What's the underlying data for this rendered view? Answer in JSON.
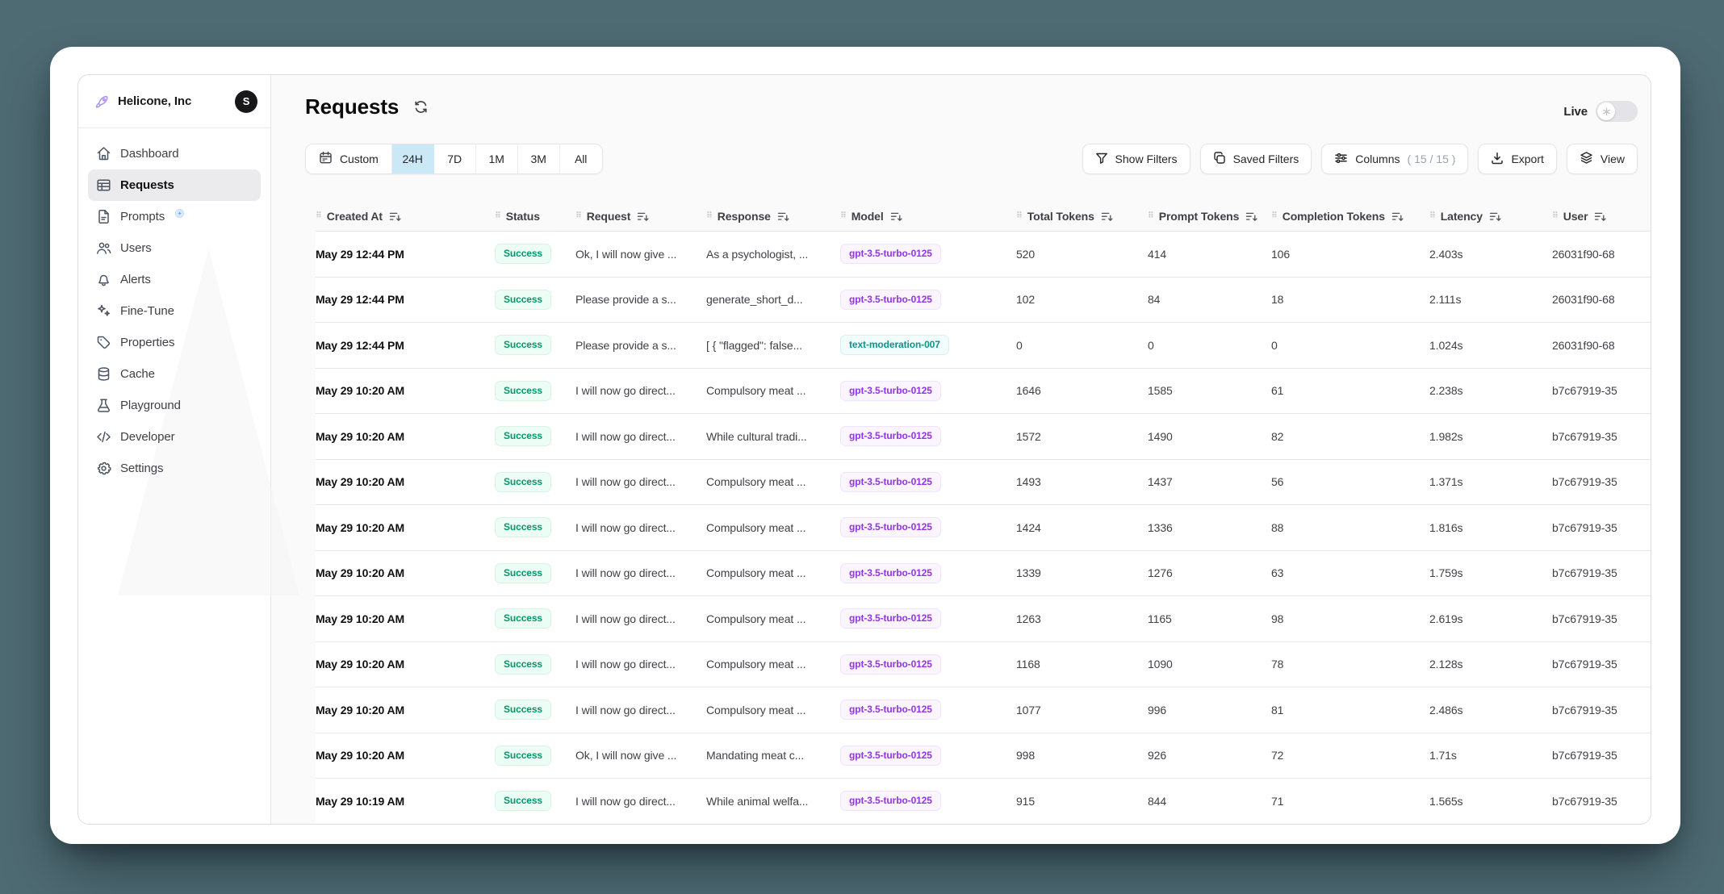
{
  "colors": {
    "background": "#4e6a73",
    "selected_range_bg": "#cbe8f7",
    "success_text": "#059669",
    "success_bg": "#ecfdf5",
    "model_purple_text": "#9333ea",
    "model_teal_text": "#0d9488",
    "sidebar_active_bg": "#ebebee"
  },
  "org": {
    "name": "Helicone, Inc",
    "avatar_initial": "S",
    "logo_icon": "rocket-icon"
  },
  "sidebar": {
    "items": [
      {
        "id": "dashboard",
        "label": "Dashboard",
        "icon": "dashboard-icon",
        "active": false,
        "badge": false
      },
      {
        "id": "requests",
        "label": "Requests",
        "icon": "table-icon",
        "active": true,
        "badge": false
      },
      {
        "id": "prompts",
        "label": "Prompts",
        "icon": "document-icon",
        "active": false,
        "badge": true
      },
      {
        "id": "users",
        "label": "Users",
        "icon": "users-icon",
        "active": false,
        "badge": false
      },
      {
        "id": "alerts",
        "label": "Alerts",
        "icon": "bell-icon",
        "active": false,
        "badge": false
      },
      {
        "id": "fine-tune",
        "label": "Fine-Tune",
        "icon": "sparkles-icon",
        "active": false,
        "badge": false
      },
      {
        "id": "properties",
        "label": "Properties",
        "icon": "tag-icon",
        "active": false,
        "badge": false
      },
      {
        "id": "cache",
        "label": "Cache",
        "icon": "database-icon",
        "active": false,
        "badge": false
      },
      {
        "id": "playground",
        "label": "Playground",
        "icon": "beaker-icon",
        "active": false,
        "badge": false
      },
      {
        "id": "developer",
        "label": "Developer",
        "icon": "code-icon",
        "active": false,
        "badge": false
      },
      {
        "id": "settings",
        "label": "Settings",
        "icon": "gear-icon",
        "active": false,
        "badge": false
      }
    ]
  },
  "header": {
    "title": "Requests",
    "live_label": "Live",
    "live_on": false
  },
  "time_filters": {
    "custom_label": "Custom",
    "options": [
      "24H",
      "7D",
      "1M",
      "3M",
      "All"
    ],
    "selected": "24H"
  },
  "toolbar": {
    "show_filters_label": "Show Filters",
    "saved_filters_label": "Saved Filters",
    "columns_label": "Columns",
    "columns_count": "( 15 / 15 )",
    "export_label": "Export",
    "view_label": "View"
  },
  "table": {
    "columns": [
      {
        "label": "Created At",
        "sortable": true
      },
      {
        "label": "Status",
        "sortable": false
      },
      {
        "label": "Request",
        "sortable": true
      },
      {
        "label": "Response",
        "sortable": true
      },
      {
        "label": "Model",
        "sortable": true
      },
      {
        "label": "Total Tokens",
        "sortable": true
      },
      {
        "label": "Prompt Tokens",
        "sortable": true
      },
      {
        "label": "Completion Tokens",
        "sortable": true
      },
      {
        "label": "Latency",
        "sortable": true
      },
      {
        "label": "User",
        "sortable": true
      }
    ],
    "rows": [
      {
        "created_at": "May 29 12:44 PM",
        "status": "Success",
        "request": "Ok, I will now give ...",
        "response": "As a psychologist, ...",
        "model": "gpt-3.5-turbo-0125",
        "total_tokens": "520",
        "prompt_tokens": "414",
        "completion_tokens": "106",
        "latency": "2.403s",
        "user": "26031f90-68"
      },
      {
        "created_at": "May 29 12:44 PM",
        "status": "Success",
        "request": "Please provide a s...",
        "response": "generate_short_d...",
        "model": "gpt-3.5-turbo-0125",
        "total_tokens": "102",
        "prompt_tokens": "84",
        "completion_tokens": "18",
        "latency": "2.111s",
        "user": "26031f90-68"
      },
      {
        "created_at": "May 29 12:44 PM",
        "status": "Success",
        "request": "Please provide a s...",
        "response": "[ { \"flagged\": false...",
        "model": "text-moderation-007",
        "total_tokens": "0",
        "prompt_tokens": "0",
        "completion_tokens": "0",
        "latency": "1.024s",
        "user": "26031f90-68"
      },
      {
        "created_at": "May 29 10:20 AM",
        "status": "Success",
        "request": "I will now go direct...",
        "response": "Compulsory meat ...",
        "model": "gpt-3.5-turbo-0125",
        "total_tokens": "1646",
        "prompt_tokens": "1585",
        "completion_tokens": "61",
        "latency": "2.238s",
        "user": "b7c67919-35"
      },
      {
        "created_at": "May 29 10:20 AM",
        "status": "Success",
        "request": "I will now go direct...",
        "response": "While cultural tradi...",
        "model": "gpt-3.5-turbo-0125",
        "total_tokens": "1572",
        "prompt_tokens": "1490",
        "completion_tokens": "82",
        "latency": "1.982s",
        "user": "b7c67919-35"
      },
      {
        "created_at": "May 29 10:20 AM",
        "status": "Success",
        "request": "I will now go direct...",
        "response": "Compulsory meat ...",
        "model": "gpt-3.5-turbo-0125",
        "total_tokens": "1493",
        "prompt_tokens": "1437",
        "completion_tokens": "56",
        "latency": "1.371s",
        "user": "b7c67919-35"
      },
      {
        "created_at": "May 29 10:20 AM",
        "status": "Success",
        "request": "I will now go direct...",
        "response": "Compulsory meat ...",
        "model": "gpt-3.5-turbo-0125",
        "total_tokens": "1424",
        "prompt_tokens": "1336",
        "completion_tokens": "88",
        "latency": "1.816s",
        "user": "b7c67919-35"
      },
      {
        "created_at": "May 29 10:20 AM",
        "status": "Success",
        "request": "I will now go direct...",
        "response": "Compulsory meat ...",
        "model": "gpt-3.5-turbo-0125",
        "total_tokens": "1339",
        "prompt_tokens": "1276",
        "completion_tokens": "63",
        "latency": "1.759s",
        "user": "b7c67919-35"
      },
      {
        "created_at": "May 29 10:20 AM",
        "status": "Success",
        "request": "I will now go direct...",
        "response": "Compulsory meat ...",
        "model": "gpt-3.5-turbo-0125",
        "total_tokens": "1263",
        "prompt_tokens": "1165",
        "completion_tokens": "98",
        "latency": "2.619s",
        "user": "b7c67919-35"
      },
      {
        "created_at": "May 29 10:20 AM",
        "status": "Success",
        "request": "I will now go direct...",
        "response": "Compulsory meat ...",
        "model": "gpt-3.5-turbo-0125",
        "total_tokens": "1168",
        "prompt_tokens": "1090",
        "completion_tokens": "78",
        "latency": "2.128s",
        "user": "b7c67919-35"
      },
      {
        "created_at": "May 29 10:20 AM",
        "status": "Success",
        "request": "I will now go direct...",
        "response": "Compulsory meat ...",
        "model": "gpt-3.5-turbo-0125",
        "total_tokens": "1077",
        "prompt_tokens": "996",
        "completion_tokens": "81",
        "latency": "2.486s",
        "user": "b7c67919-35"
      },
      {
        "created_at": "May 29 10:20 AM",
        "status": "Success",
        "request": "Ok, I will now give ...",
        "response": "Mandating meat c...",
        "model": "gpt-3.5-turbo-0125",
        "total_tokens": "998",
        "prompt_tokens": "926",
        "completion_tokens": "72",
        "latency": "1.71s",
        "user": "b7c67919-35"
      },
      {
        "created_at": "May 29 10:19 AM",
        "status": "Success",
        "request": "I will now go direct...",
        "response": "While animal welfa...",
        "model": "gpt-3.5-turbo-0125",
        "total_tokens": "915",
        "prompt_tokens": "844",
        "completion_tokens": "71",
        "latency": "1.565s",
        "user": "b7c67919-35"
      }
    ]
  }
}
